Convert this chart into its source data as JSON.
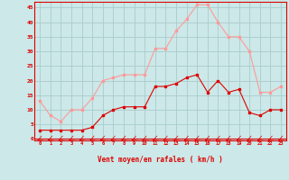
{
  "hours": [
    0,
    1,
    2,
    3,
    4,
    5,
    6,
    7,
    8,
    9,
    10,
    11,
    12,
    13,
    14,
    15,
    16,
    17,
    18,
    19,
    20,
    21,
    22,
    23
  ],
  "wind_avg": [
    3,
    3,
    3,
    3,
    3,
    4,
    8,
    10,
    11,
    11,
    11,
    18,
    18,
    19,
    21,
    22,
    16,
    20,
    16,
    17,
    9,
    8,
    10,
    10
  ],
  "wind_gust": [
    13,
    8,
    6,
    10,
    10,
    14,
    20,
    21,
    22,
    22,
    22,
    31,
    31,
    37,
    41,
    46,
    46,
    40,
    35,
    35,
    30,
    16,
    16,
    18
  ],
  "bg_color": "#cce8e8",
  "grid_color": "#aacccc",
  "avg_color": "#dd0000",
  "gust_color": "#ff9999",
  "xlabel": "Vent moyen/en rafales ( km/h )",
  "ylabel_ticks": [
    0,
    5,
    10,
    15,
    20,
    25,
    30,
    35,
    40,
    45
  ],
  "ylim": [
    -0.5,
    47
  ],
  "xlim": [
    -0.5,
    23.5
  ]
}
